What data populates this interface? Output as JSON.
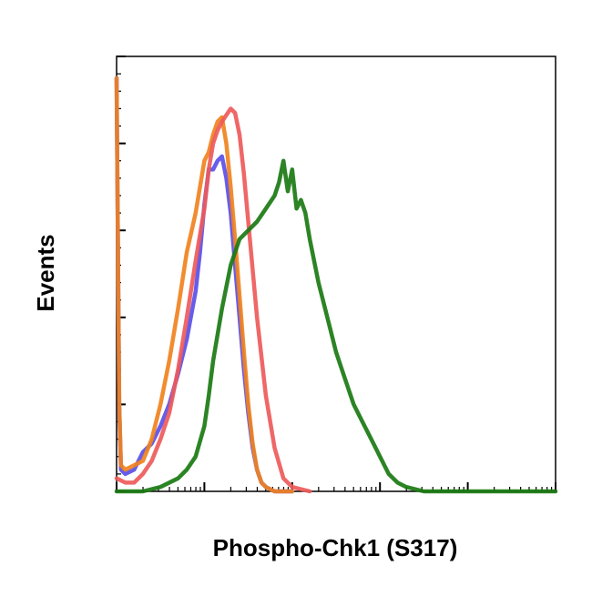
{
  "chart_data": {
    "type": "line",
    "title": "",
    "xlabel": "Phospho-Chk1 (S317)",
    "ylabel": "Events",
    "x_scale": "log",
    "xlim": [
      0,
      5
    ],
    "ylim": [
      0,
      100
    ],
    "show_tick_labels": false,
    "grid": false,
    "legend": "none",
    "series": [
      {
        "color": "#5a4fe8",
        "x": [
          0,
          0.03,
          0.05,
          0.1,
          0.2,
          0.3,
          0.4,
          0.5,
          0.6,
          0.7,
          0.8,
          0.9,
          0.95,
          1.0,
          1.05,
          1.1,
          1.15,
          1.2,
          1.25,
          1.3,
          1.35,
          1.4,
          1.45,
          1.5,
          1.55,
          1.6,
          1.65,
          1.7,
          1.8,
          2.0
        ],
        "y": [
          95,
          20,
          5,
          4,
          5,
          9,
          11,
          15,
          20,
          27,
          35,
          46,
          55,
          66,
          74,
          74,
          76,
          77,
          72,
          64,
          52,
          40,
          28,
          18,
          10,
          5,
          2,
          1,
          0,
          0
        ]
      },
      {
        "color": "#f0821e",
        "x": [
          0,
          0.03,
          0.05,
          0.1,
          0.2,
          0.3,
          0.4,
          0.5,
          0.6,
          0.7,
          0.8,
          0.9,
          0.95,
          1.0,
          1.05,
          1.1,
          1.15,
          1.2,
          1.25,
          1.3,
          1.35,
          1.4,
          1.45,
          1.5,
          1.55,
          1.6,
          1.65,
          1.7,
          1.8,
          2.0
        ],
        "y": [
          95,
          20,
          6,
          5,
          6,
          7,
          12,
          20,
          30,
          42,
          55,
          64,
          70,
          76,
          78,
          82,
          85,
          86,
          80,
          70,
          58,
          45,
          32,
          20,
          11,
          5,
          2,
          1,
          0,
          0
        ]
      },
      {
        "color": "#ee5a5a",
        "x": [
          0.0,
          0.1,
          0.2,
          0.3,
          0.4,
          0.5,
          0.6,
          0.7,
          0.8,
          0.9,
          1.0,
          1.05,
          1.1,
          1.15,
          1.2,
          1.3,
          1.35,
          1.4,
          1.45,
          1.5,
          1.6,
          1.7,
          1.8,
          1.9,
          2.0,
          2.2
        ],
        "y": [
          3,
          2,
          2,
          4,
          7,
          12,
          18,
          28,
          40,
          53,
          65,
          74,
          80,
          83,
          85,
          88,
          87,
          82,
          73,
          62,
          40,
          22,
          10,
          3,
          1,
          0
        ]
      },
      {
        "color": "#1a7a12",
        "x": [
          0.0,
          0.3,
          0.5,
          0.7,
          0.8,
          0.9,
          1.0,
          1.05,
          1.1,
          1.2,
          1.3,
          1.4,
          1.5,
          1.6,
          1.7,
          1.8,
          1.85,
          1.9,
          1.95,
          2.0,
          2.05,
          2.1,
          2.15,
          2.2,
          2.3,
          2.4,
          2.5,
          2.6,
          2.7,
          2.8,
          2.9,
          3.0,
          3.1,
          3.2,
          3.3,
          3.5,
          4.0,
          5.0
        ],
        "y": [
          0,
          0,
          1,
          3,
          5,
          8,
          15,
          22,
          30,
          42,
          52,
          58,
          60,
          62,
          65,
          68,
          71,
          76,
          69,
          74,
          65,
          67,
          64,
          58,
          48,
          40,
          32,
          26,
          20,
          16,
          12,
          8,
          4,
          2,
          1,
          0,
          0,
          0
        ]
      }
    ]
  }
}
